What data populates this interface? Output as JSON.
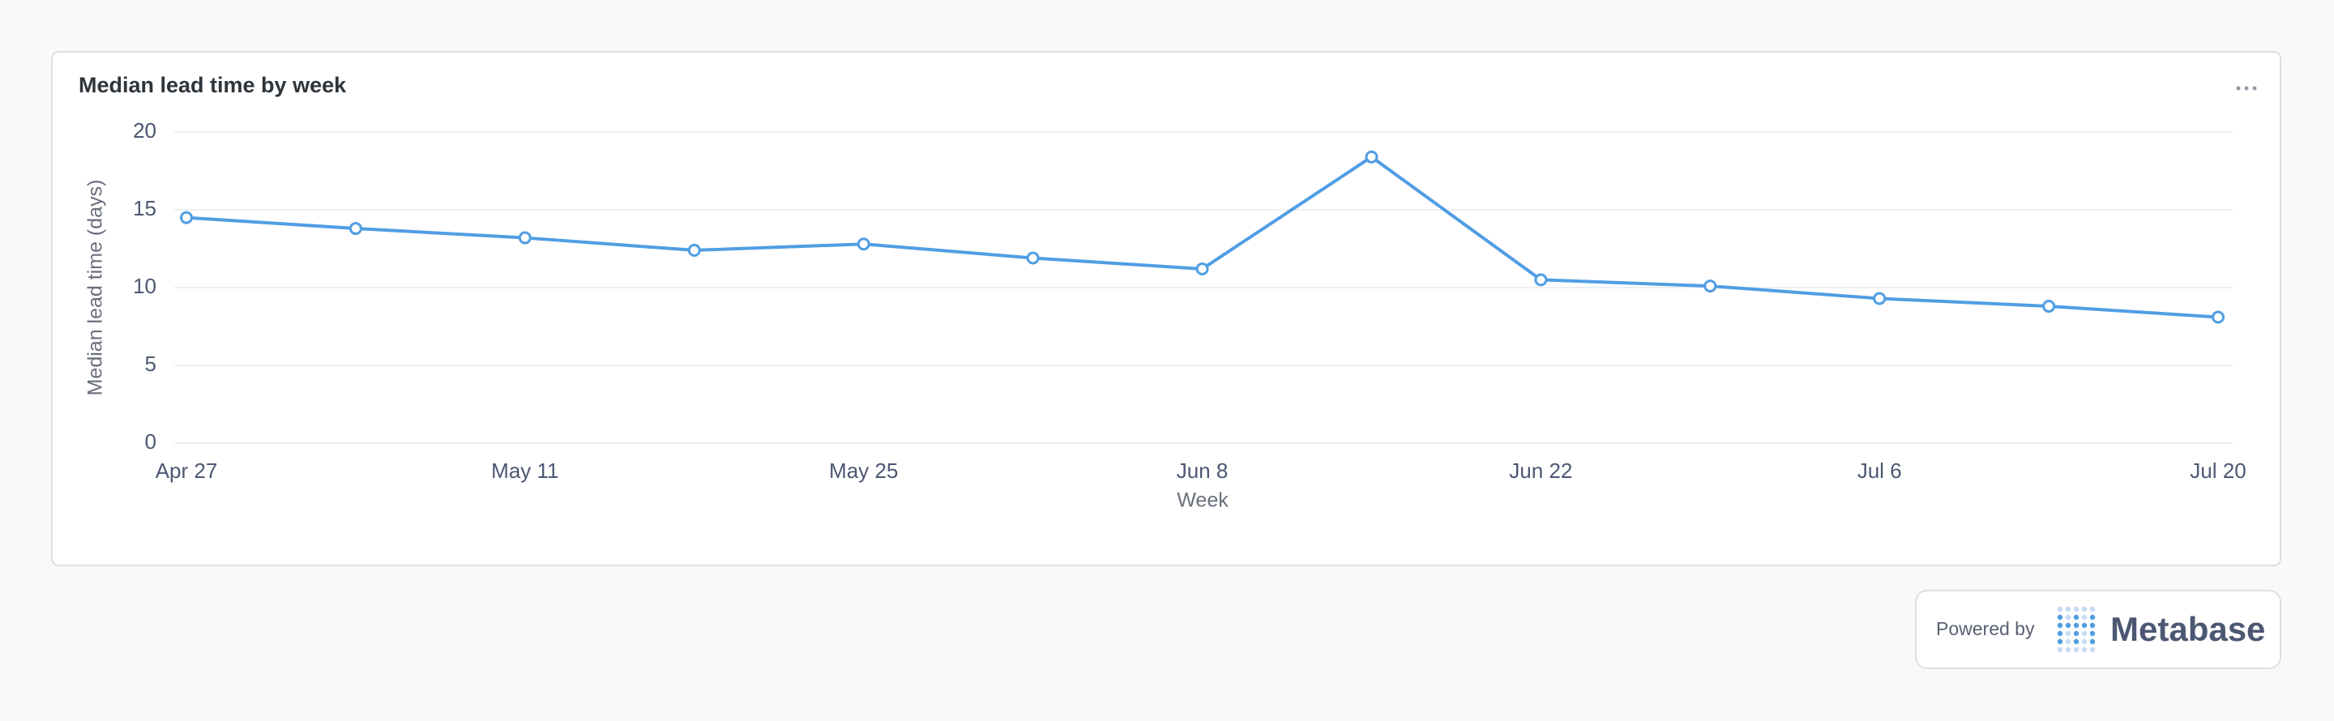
{
  "chart_data": {
    "type": "line",
    "title": "Median lead time by week",
    "x_label": "Week",
    "y_label": "Median lead time (days)",
    "categories": [
      "Apr 27",
      null,
      "May 11",
      null,
      "May 25",
      null,
      "Jun 8",
      null,
      "Jun 22",
      null,
      "Jul 6",
      null,
      "Jul 20"
    ],
    "values": [
      14.5,
      13.8,
      13.2,
      12.4,
      12.8,
      11.9,
      11.2,
      18.4,
      10.5,
      10.1,
      9.3,
      8.8,
      8.1
    ],
    "color": "#509ee3",
    "ylim": [
      0,
      20
    ],
    "yticks": [
      0,
      5,
      10,
      15,
      20
    ],
    "grid": true
  },
  "footer": {
    "powered_by": "Powered by",
    "brand": "Metabase"
  }
}
